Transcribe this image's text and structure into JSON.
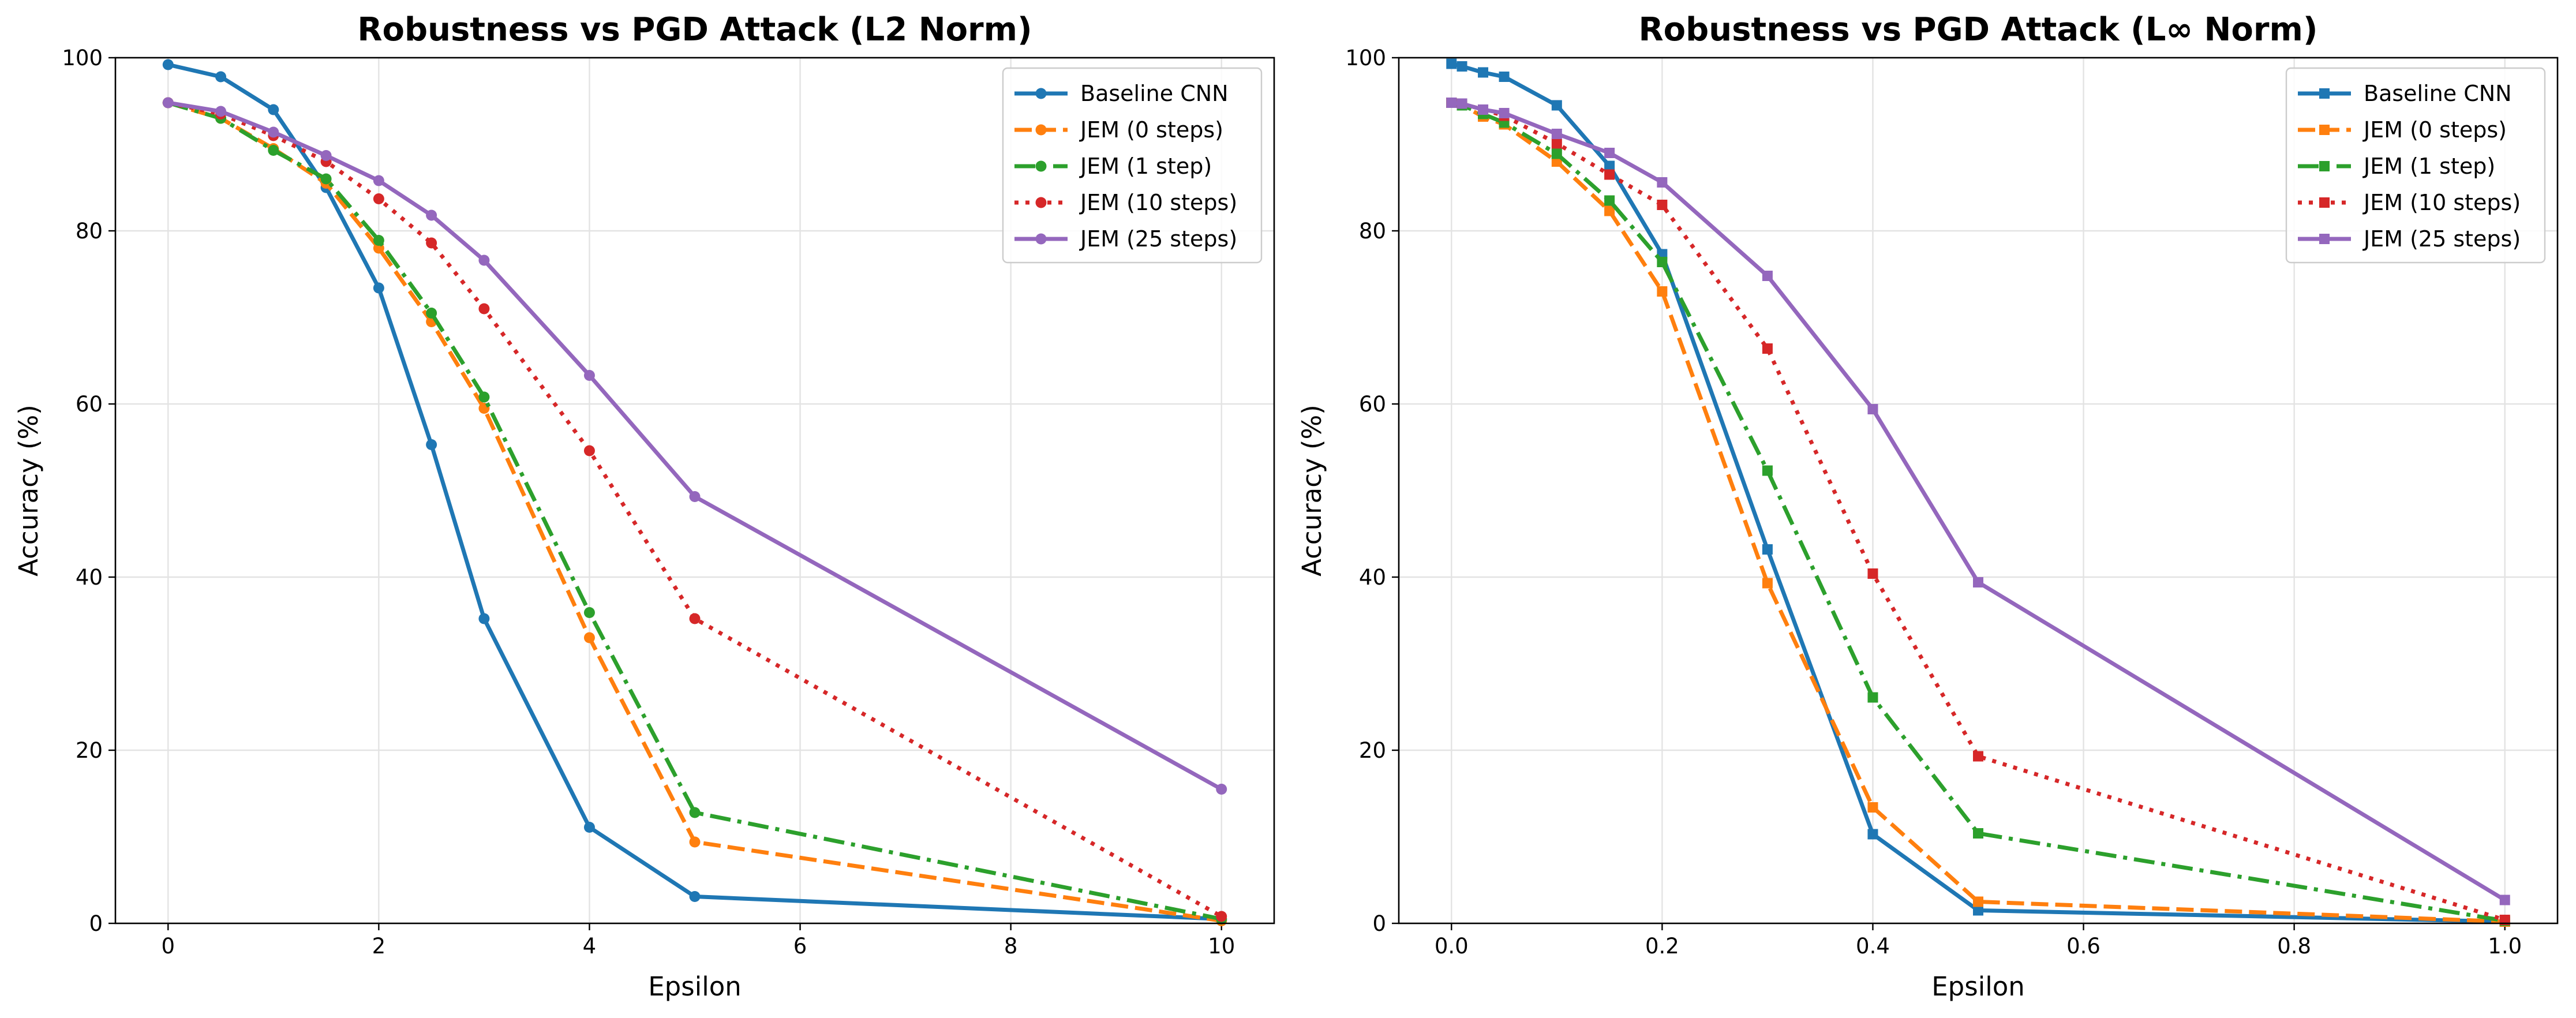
{
  "chart_data": [
    {
      "type": "line",
      "title": "Robustness vs PGD Attack (L2 Norm)",
      "xlabel": "Epsilon",
      "ylabel": "Accuracy (%)",
      "xlim": [
        -0.5,
        10.5
      ],
      "ylim": [
        0,
        100
      ],
      "xticks": [
        0,
        2,
        4,
        6,
        8,
        10
      ],
      "xtick_labels": [
        "0",
        "2",
        "4",
        "6",
        "8",
        "10"
      ],
      "yticks": [
        0,
        20,
        40,
        60,
        80,
        100
      ],
      "ytick_labels": [
        "0",
        "20",
        "40",
        "60",
        "80",
        "100"
      ],
      "grid": true,
      "legend_position": "top-right",
      "marker": "circle",
      "x": [
        0,
        0.5,
        1,
        1.5,
        2,
        2.5,
        3,
        4,
        5,
        10
      ],
      "series": [
        {
          "name": "Baseline CNN",
          "color": "#1f77b4",
          "dash": "solid",
          "values": [
            99.2,
            97.8,
            94.0,
            85.0,
            73.4,
            55.3,
            35.2,
            11.1,
            3.1,
            0.5
          ]
        },
        {
          "name": "JEM (0 steps)",
          "color": "#ff7f0e",
          "dash": "dashed",
          "values": [
            94.8,
            93.0,
            89.5,
            85.5,
            78.0,
            69.5,
            59.5,
            33.0,
            9.4,
            0.3
          ]
        },
        {
          "name": "JEM (1 step)",
          "color": "#2ca02c",
          "dash": "dashdot",
          "values": [
            94.8,
            93.0,
            89.3,
            86.0,
            78.9,
            70.5,
            60.8,
            35.9,
            12.8,
            0.5
          ]
        },
        {
          "name": "JEM (10 steps)",
          "color": "#d62728",
          "dash": "dotted",
          "values": [
            94.8,
            93.5,
            91.0,
            88.0,
            83.7,
            78.6,
            71.0,
            54.6,
            35.2,
            0.8
          ]
        },
        {
          "name": "JEM (25 steps)",
          "color": "#9467bd",
          "dash": "solid",
          "values": [
            94.8,
            93.8,
            91.4,
            88.7,
            85.8,
            81.8,
            76.6,
            63.3,
            49.3,
            15.5
          ]
        }
      ]
    },
    {
      "type": "line",
      "title": "Robustness vs PGD Attack (L∞ Norm)",
      "xlabel": "Epsilon",
      "ylabel": "Accuracy (%)",
      "xlim": [
        -0.05,
        1.05
      ],
      "ylim": [
        0,
        100
      ],
      "xticks": [
        0,
        0.2,
        0.4,
        0.6,
        0.8,
        1.0
      ],
      "xtick_labels": [
        "0.0",
        "0.2",
        "0.4",
        "0.6",
        "0.8",
        "1.0"
      ],
      "yticks": [
        0,
        20,
        40,
        60,
        80,
        100
      ],
      "ytick_labels": [
        "0",
        "20",
        "40",
        "60",
        "80",
        "100"
      ],
      "grid": true,
      "legend_position": "top-right",
      "marker": "square",
      "x": [
        0,
        0.01,
        0.03,
        0.05,
        0.1,
        0.15,
        0.2,
        0.3,
        0.4,
        0.5,
        1.0
      ],
      "series": [
        {
          "name": "Baseline CNN",
          "color": "#1f77b4",
          "dash": "solid",
          "values": [
            99.3,
            99.0,
            98.3,
            97.8,
            94.5,
            87.5,
            77.3,
            43.2,
            10.3,
            1.5,
            0.2
          ]
        },
        {
          "name": "JEM (0 steps)",
          "color": "#ff7f0e",
          "dash": "dashed",
          "values": [
            94.8,
            94.5,
            93.2,
            92.3,
            88.0,
            82.3,
            73.0,
            39.3,
            13.4,
            2.5,
            0.2
          ]
        },
        {
          "name": "JEM (1 step)",
          "color": "#2ca02c",
          "dash": "dashdot",
          "values": [
            94.8,
            94.5,
            93.5,
            92.5,
            88.9,
            83.5,
            76.4,
            52.3,
            26.1,
            10.4,
            0.3
          ]
        },
        {
          "name": "JEM (10 steps)",
          "color": "#d62728",
          "dash": "dotted",
          "values": [
            94.8,
            94.7,
            94.0,
            93.3,
            90.1,
            86.5,
            83.0,
            66.4,
            40.4,
            19.3,
            0.4
          ]
        },
        {
          "name": "JEM (25 steps)",
          "color": "#9467bd",
          "dash": "solid",
          "values": [
            94.8,
            94.7,
            94.0,
            93.6,
            91.2,
            89.0,
            85.6,
            74.8,
            59.4,
            39.4,
            2.7
          ]
        }
      ]
    }
  ]
}
